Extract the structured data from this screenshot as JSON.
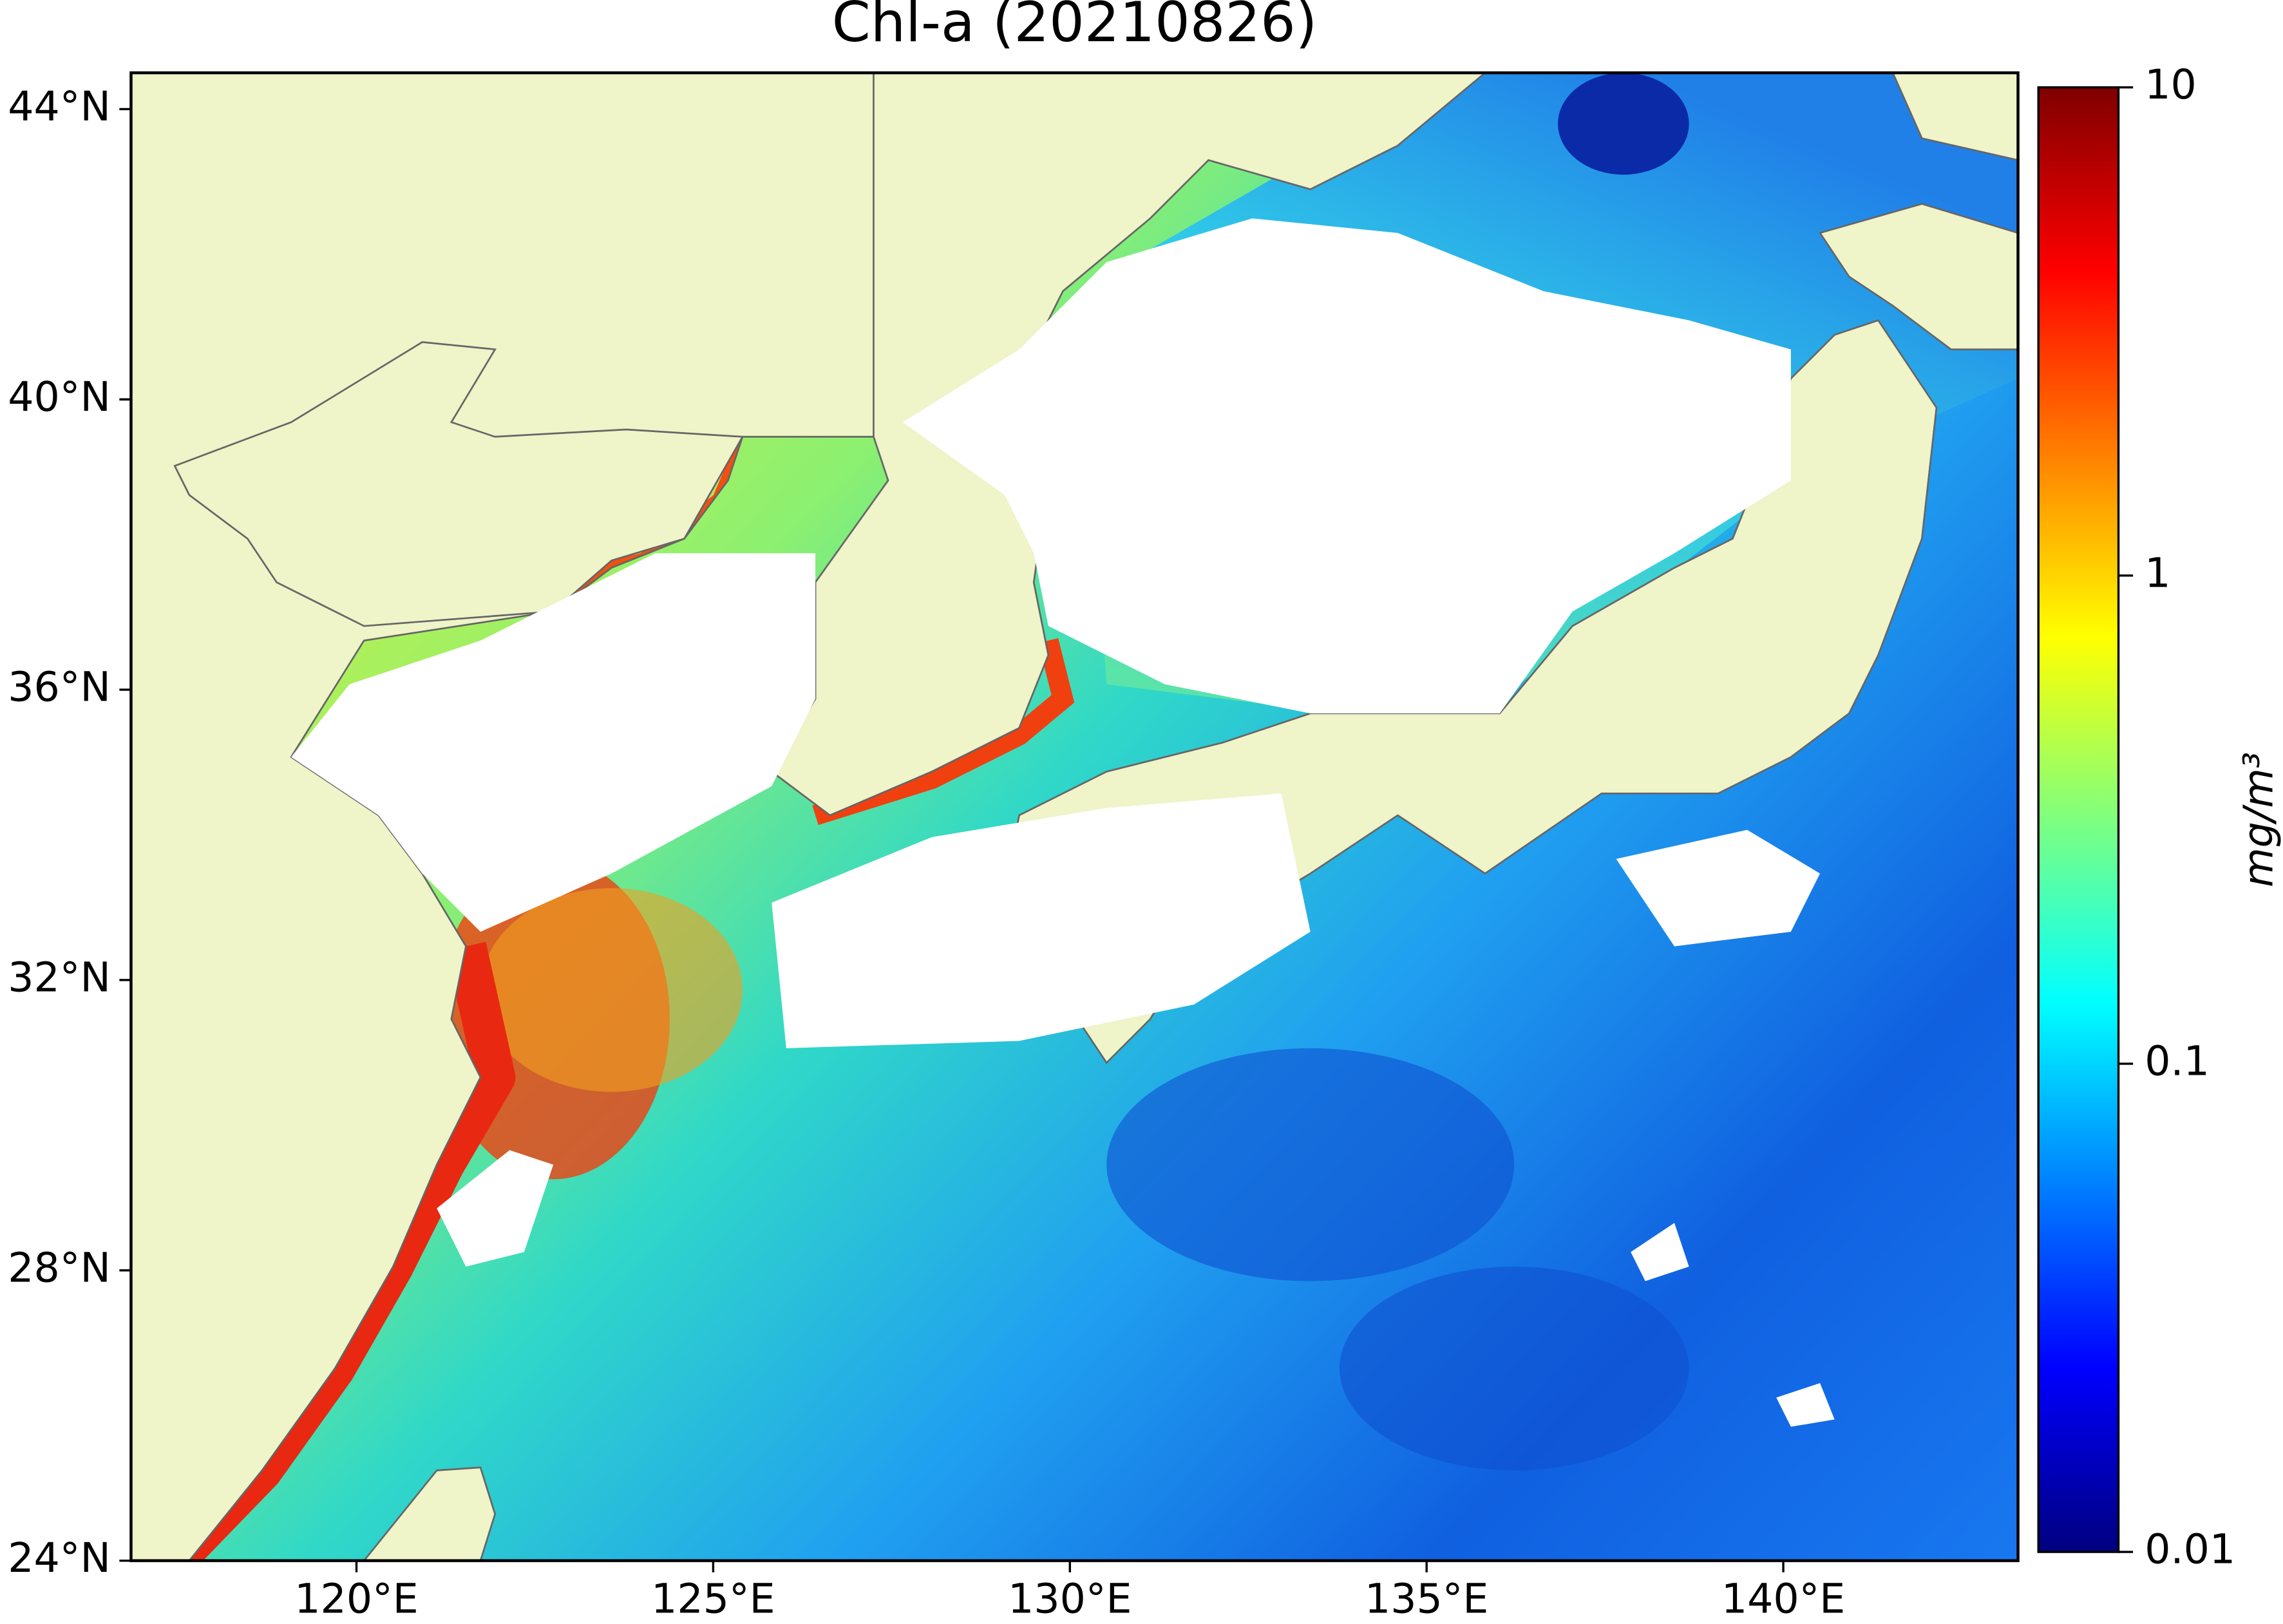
{
  "chart_data": {
    "type": "map",
    "title": "Chl-a (20210826)",
    "xlim": [
      116.84,
      143.29
    ],
    "ylim": [
      24,
      44.5
    ],
    "xticks": [
      {
        "value": 120,
        "label": "120°E"
      },
      {
        "value": 125,
        "label": "125°E"
      },
      {
        "value": 130,
        "label": "130°E"
      },
      {
        "value": 135,
        "label": "135°E"
      },
      {
        "value": 140,
        "label": "140°E"
      }
    ],
    "yticks": [
      {
        "value": 24,
        "label": "24°N"
      },
      {
        "value": 28,
        "label": "28°N"
      },
      {
        "value": 32,
        "label": "32°N"
      },
      {
        "value": 36,
        "label": "36°N"
      },
      {
        "value": 40,
        "label": "40°N"
      },
      {
        "value": 44,
        "label": "44°N"
      }
    ],
    "colorbar": {
      "label": "mg/m³",
      "scale": "log",
      "colormap": "jet",
      "lim": [
        0.01,
        10
      ],
      "ticks": [
        0.01,
        0.1,
        1,
        10
      ]
    }
  }
}
